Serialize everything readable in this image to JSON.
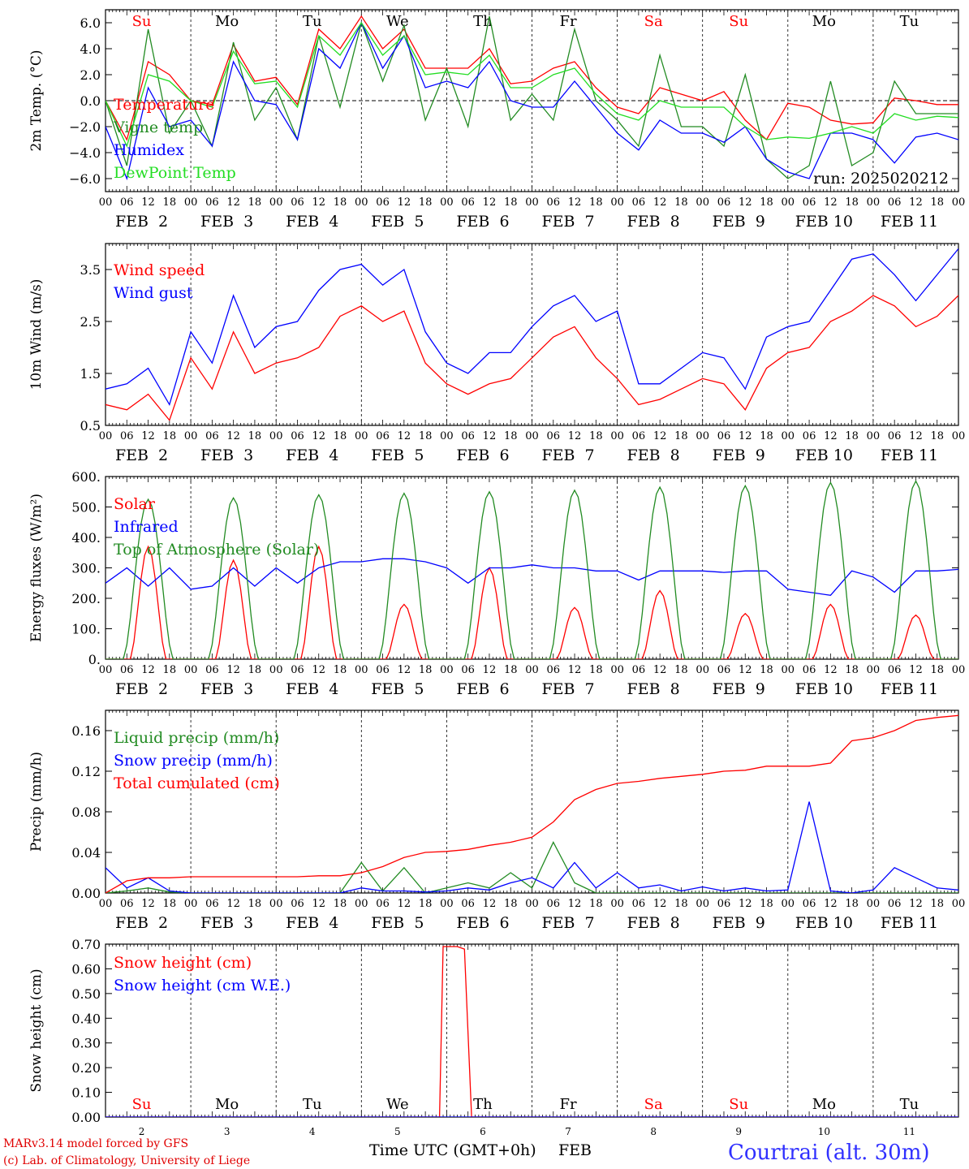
{
  "station": {
    "name": "Courtrai (alt. 30m)",
    "color": "#3030ff"
  },
  "credits": {
    "line1": "MARv3.14 model forced by GFS",
    "line2": "(c) Lab. of Climatology, University of Liege",
    "color": "#e00000"
  },
  "run_label": "run: 2025020212",
  "time_axis": {
    "hour_ticks": [
      "00",
      "06",
      "12",
      "18"
    ],
    "days": [
      {
        "label": "FEB  2",
        "num": "2",
        "weekday": "Su",
        "weekend": true
      },
      {
        "label": "FEB  3",
        "num": "3",
        "weekday": "Mo",
        "weekend": false
      },
      {
        "label": "FEB  4",
        "num": "4",
        "weekday": "Tu",
        "weekend": false
      },
      {
        "label": "FEB  5",
        "num": "5",
        "weekday": "We",
        "weekend": false
      },
      {
        "label": "FEB  6",
        "num": "6",
        "weekday": "Th",
        "weekend": false
      },
      {
        "label": "FEB  7",
        "num": "7",
        "weekday": "Fr",
        "weekend": false
      },
      {
        "label": "FEB  8",
        "num": "8",
        "weekday": "Sa",
        "weekend": true
      },
      {
        "label": "FEB  9",
        "num": "9",
        "weekday": "Su",
        "weekend": true
      },
      {
        "label": "FEB 10",
        "num": "10",
        "weekday": "Mo",
        "weekend": false
      },
      {
        "label": "FEB 11",
        "num": "11",
        "weekday": "Tu",
        "weekend": false
      }
    ],
    "xlabel": "Time UTC (GMT+0h)",
    "xlabel_month": "FEB"
  },
  "colors": {
    "red": "#ff0000",
    "green": "#228b22",
    "blue": "#0000ff",
    "lime": "#22dd22",
    "weekday": "#000000"
  },
  "chart_data": [
    {
      "id": "temperature",
      "type": "line",
      "ylabel": "2m Temp. (°C)",
      "ylim": [
        -7,
        7
      ],
      "yticks": [
        "6.0",
        "4.0",
        "2.0",
        "0.0",
        "−2.0",
        "−4.0",
        "−6.0"
      ],
      "ytick_values": [
        6,
        4,
        2,
        0,
        -2,
        -4,
        -6
      ],
      "zero_line": true,
      "weekday_labels": "top",
      "x_hours": [
        0,
        6,
        12,
        18,
        24,
        30,
        36,
        42,
        48,
        54,
        60,
        66,
        72,
        78,
        84,
        90,
        96,
        102,
        108,
        114,
        120,
        126,
        132,
        138,
        144,
        150,
        156,
        162,
        168,
        174,
        180,
        186,
        192,
        198,
        204,
        210,
        216,
        222,
        228,
        234,
        240
      ],
      "series": [
        {
          "name": "Temperature",
          "color": "red",
          "values": [
            0,
            -3,
            3,
            2,
            0,
            -0.3,
            4.3,
            1.5,
            1.8,
            -0.3,
            5.5,
            4,
            6.5,
            4,
            5.5,
            2.5,
            2.5,
            2.5,
            4,
            1.3,
            1.5,
            2.5,
            3,
            1,
            -0.5,
            -1,
            1,
            0.5,
            0,
            0.7,
            -1.5,
            -3,
            -0.2,
            -0.5,
            -1.5,
            -1.8,
            -1.7,
            0.2,
            0,
            -0.3,
            -0.3
          ]
        },
        {
          "name": "Vigne temp",
          "color": "green",
          "values": [
            0,
            -5,
            5.5,
            -2.5,
            0,
            -3.5,
            4.5,
            -1.5,
            1,
            -3,
            5,
            -0.5,
            6,
            1.5,
            5.8,
            -1.5,
            2.5,
            -2,
            6.5,
            -1.5,
            0.5,
            -1.5,
            5.5,
            0,
            -1.5,
            -3.5,
            3.5,
            -2,
            -2,
            -3.5,
            2,
            -4.5,
            -6,
            -5,
            1.5,
            -5,
            -4,
            1.5,
            -1,
            -1,
            -1
          ]
        },
        {
          "name": "Humidex",
          "color": "blue",
          "values": [
            -2,
            -6,
            1,
            -2,
            -1.5,
            -3.5,
            3,
            0,
            -0.3,
            -3,
            4,
            2.5,
            6,
            2.5,
            5,
            1,
            1.5,
            1,
            3,
            0,
            -0.5,
            -0.5,
            1.5,
            -0.5,
            -2.5,
            -3.8,
            -1.5,
            -2.5,
            -2.5,
            -3.2,
            -2,
            -4.5,
            -5.5,
            -6,
            -2.5,
            -2.5,
            -3,
            -4.8,
            -2.8,
            -2.5,
            -3
          ]
        },
        {
          "name": "DewPoint Temp",
          "color": "lime",
          "values": [
            0,
            -3.5,
            2,
            1.5,
            0,
            -0.5,
            3.8,
            1.3,
            1.5,
            -0.5,
            5,
            3.5,
            6,
            3.5,
            5,
            2,
            2.2,
            2,
            3.5,
            1,
            1,
            2,
            2.5,
            0.5,
            -1,
            -1.5,
            0,
            -0.5,
            -0.5,
            -0.5,
            -2,
            -3,
            -2.8,
            -2.9,
            -2.5,
            -2,
            -2.5,
            -1,
            -1.5,
            -1.2,
            -1.3
          ]
        }
      ],
      "legend": [
        "Temperature",
        "Vigne temp",
        "Humidex",
        "DewPoint Temp"
      ]
    },
    {
      "id": "wind",
      "type": "line",
      "ylabel": "10m Wind (m/s)",
      "ylim": [
        0.5,
        4.0
      ],
      "yticks": [
        "3.5",
        "2.5",
        "1.5",
        "0.5"
      ],
      "ytick_values": [
        3.5,
        2.5,
        1.5,
        0.5
      ],
      "x_hours": [
        0,
        6,
        12,
        18,
        24,
        30,
        36,
        42,
        48,
        54,
        60,
        66,
        72,
        78,
        84,
        90,
        96,
        102,
        108,
        114,
        120,
        126,
        132,
        138,
        144,
        150,
        156,
        162,
        168,
        174,
        180,
        186,
        192,
        198,
        204,
        210,
        216,
        222,
        228,
        234,
        240
      ],
      "series": [
        {
          "name": "Wind speed",
          "color": "red",
          "values": [
            0.9,
            0.8,
            1.1,
            0.6,
            1.8,
            1.2,
            2.3,
            1.5,
            1.7,
            1.8,
            2.0,
            2.6,
            2.8,
            2.5,
            2.7,
            1.7,
            1.3,
            1.1,
            1.3,
            1.4,
            1.8,
            2.2,
            2.4,
            1.8,
            1.4,
            0.9,
            1.0,
            1.2,
            1.4,
            1.3,
            0.8,
            1.6,
            1.9,
            2.0,
            2.5,
            2.7,
            3.0,
            2.8,
            2.4,
            2.6,
            3.0
          ]
        },
        {
          "name": "Wind gust",
          "color": "blue",
          "values": [
            1.2,
            1.3,
            1.6,
            0.9,
            2.3,
            1.7,
            3.0,
            2.0,
            2.4,
            2.5,
            3.1,
            3.5,
            3.6,
            3.2,
            3.5,
            2.3,
            1.7,
            1.5,
            1.9,
            1.9,
            2.4,
            2.8,
            3.0,
            2.5,
            2.7,
            1.3,
            1.3,
            1.6,
            1.9,
            1.8,
            1.2,
            2.2,
            2.4,
            2.5,
            3.1,
            3.7,
            3.8,
            3.4,
            2.9,
            3.4,
            3.9
          ]
        }
      ],
      "legend": [
        "Wind speed",
        "Wind gust"
      ]
    },
    {
      "id": "energy",
      "type": "line",
      "ylabel": "Energy fluxes (W/m²)",
      "ylim": [
        0,
        600
      ],
      "yticks": [
        "600.",
        "500.",
        "400.",
        "300.",
        "200.",
        "100.",
        "0."
      ],
      "ytick_values": [
        600,
        500,
        400,
        300,
        200,
        100,
        0
      ],
      "series": [
        {
          "name": "Solar",
          "color": "red",
          "peaks": [
            370,
            325,
            370,
            180,
            300,
            170,
            225,
            150,
            180,
            145
          ]
        },
        {
          "name": "Infrared",
          "color": "blue",
          "x_hours": [
            0,
            6,
            12,
            18,
            24,
            30,
            36,
            42,
            48,
            54,
            60,
            66,
            72,
            78,
            84,
            90,
            96,
            102,
            108,
            114,
            120,
            126,
            132,
            138,
            144,
            150,
            156,
            162,
            168,
            174,
            180,
            186,
            192,
            198,
            204,
            210,
            216,
            222,
            228,
            234,
            240
          ],
          "values": [
            250,
            300,
            240,
            300,
            230,
            240,
            300,
            240,
            300,
            250,
            300,
            320,
            320,
            330,
            330,
            320,
            300,
            250,
            300,
            300,
            310,
            300,
            300,
            290,
            290,
            260,
            290,
            290,
            290,
            285,
            290,
            290,
            230,
            220,
            210,
            290,
            270,
            220,
            290,
            290,
            295
          ]
        },
        {
          "name": "Top of Atmosphere (Solar)",
          "color": "green",
          "peaks": [
            525,
            530,
            540,
            545,
            550,
            555,
            565,
            570,
            580,
            585
          ]
        }
      ],
      "legend": [
        "Solar",
        "Infrared",
        "Top of Atmosphere (Solar)"
      ]
    },
    {
      "id": "precip",
      "type": "line",
      "ylabel": "Precip (mm/h)",
      "ylim": [
        0,
        0.18
      ],
      "yticks": [
        "0.16",
        "0.12",
        "0.08",
        "0.04",
        "0.00"
      ],
      "ytick_values": [
        0.16,
        0.12,
        0.08,
        0.04,
        0
      ],
      "x_hours": [
        0,
        6,
        12,
        18,
        24,
        30,
        36,
        42,
        48,
        54,
        60,
        66,
        72,
        78,
        84,
        90,
        96,
        102,
        108,
        114,
        120,
        126,
        132,
        138,
        144,
        150,
        156,
        162,
        168,
        174,
        180,
        186,
        192,
        198,
        204,
        210,
        216,
        222,
        228,
        234,
        240
      ],
      "series": [
        {
          "name": "Liquid precip (mm/h)",
          "color": "green",
          "values": [
            0,
            0.002,
            0.005,
            0.001,
            0,
            0,
            0,
            0,
            0,
            0,
            0,
            0,
            0.03,
            0.002,
            0.025,
            0,
            0.005,
            0.01,
            0.005,
            0.02,
            0.005,
            0.05,
            0.01,
            0,
            0,
            0,
            0,
            0,
            0,
            0,
            0,
            0,
            0,
            0,
            0,
            0,
            0,
            0,
            0,
            0,
            0
          ]
        },
        {
          "name": "Snow precip (mm/h)",
          "color": "blue",
          "values": [
            0.025,
            0.005,
            0.015,
            0.002,
            0,
            0,
            0,
            0,
            0,
            0,
            0,
            0,
            0.005,
            0.002,
            0.002,
            0.001,
            0.002,
            0.005,
            0.003,
            0.01,
            0.015,
            0.005,
            0.03,
            0.005,
            0.02,
            0.005,
            0.008,
            0.002,
            0.006,
            0.002,
            0.005,
            0.002,
            0.003,
            0.09,
            0.002,
            0,
            0.003,
            0.025,
            0.015,
            0.005,
            0.003
          ]
        },
        {
          "name": "Total cumulated (cm)",
          "color": "red",
          "values": [
            0,
            0.012,
            0.015,
            0.015,
            0.016,
            0.016,
            0.016,
            0.016,
            0.016,
            0.016,
            0.017,
            0.017,
            0.02,
            0.026,
            0.035,
            0.04,
            0.041,
            0.043,
            0.047,
            0.05,
            0.055,
            0.07,
            0.092,
            0.102,
            0.108,
            0.11,
            0.113,
            0.115,
            0.117,
            0.12,
            0.121,
            0.125,
            0.125,
            0.125,
            0.128,
            0.15,
            0.153,
            0.16,
            0.17,
            0.173,
            0.175
          ]
        }
      ],
      "legend": [
        "Liquid precip (mm/h)",
        "Snow precip (mm/h)",
        "Total cumulated (cm)"
      ]
    },
    {
      "id": "snow",
      "type": "line",
      "ylabel": "Snow height (cm)",
      "ylim": [
        0,
        0.7
      ],
      "yticks": [
        "0.70",
        "0.60",
        "0.50",
        "0.40",
        "0.30",
        "0.20",
        "0.10",
        "0.00"
      ],
      "ytick_values": [
        0.7,
        0.6,
        0.5,
        0.4,
        0.3,
        0.2,
        0.1,
        0
      ],
      "weekday_labels": "bottom",
      "series": [
        {
          "name": "Snow height (cm)",
          "color": "red",
          "x_hours": [
            0,
            94,
            95,
            99,
            101,
            103,
            240
          ],
          "values": [
            0,
            0,
            0.69,
            0.69,
            0.68,
            0,
            0
          ]
        },
        {
          "name": "Snow height (cm W.E.)",
          "color": "blue",
          "x_hours": [
            0,
            240
          ],
          "values": [
            0,
            0
          ]
        }
      ],
      "legend": [
        "Snow height (cm)",
        "Snow height (cm W.E.)"
      ]
    }
  ]
}
